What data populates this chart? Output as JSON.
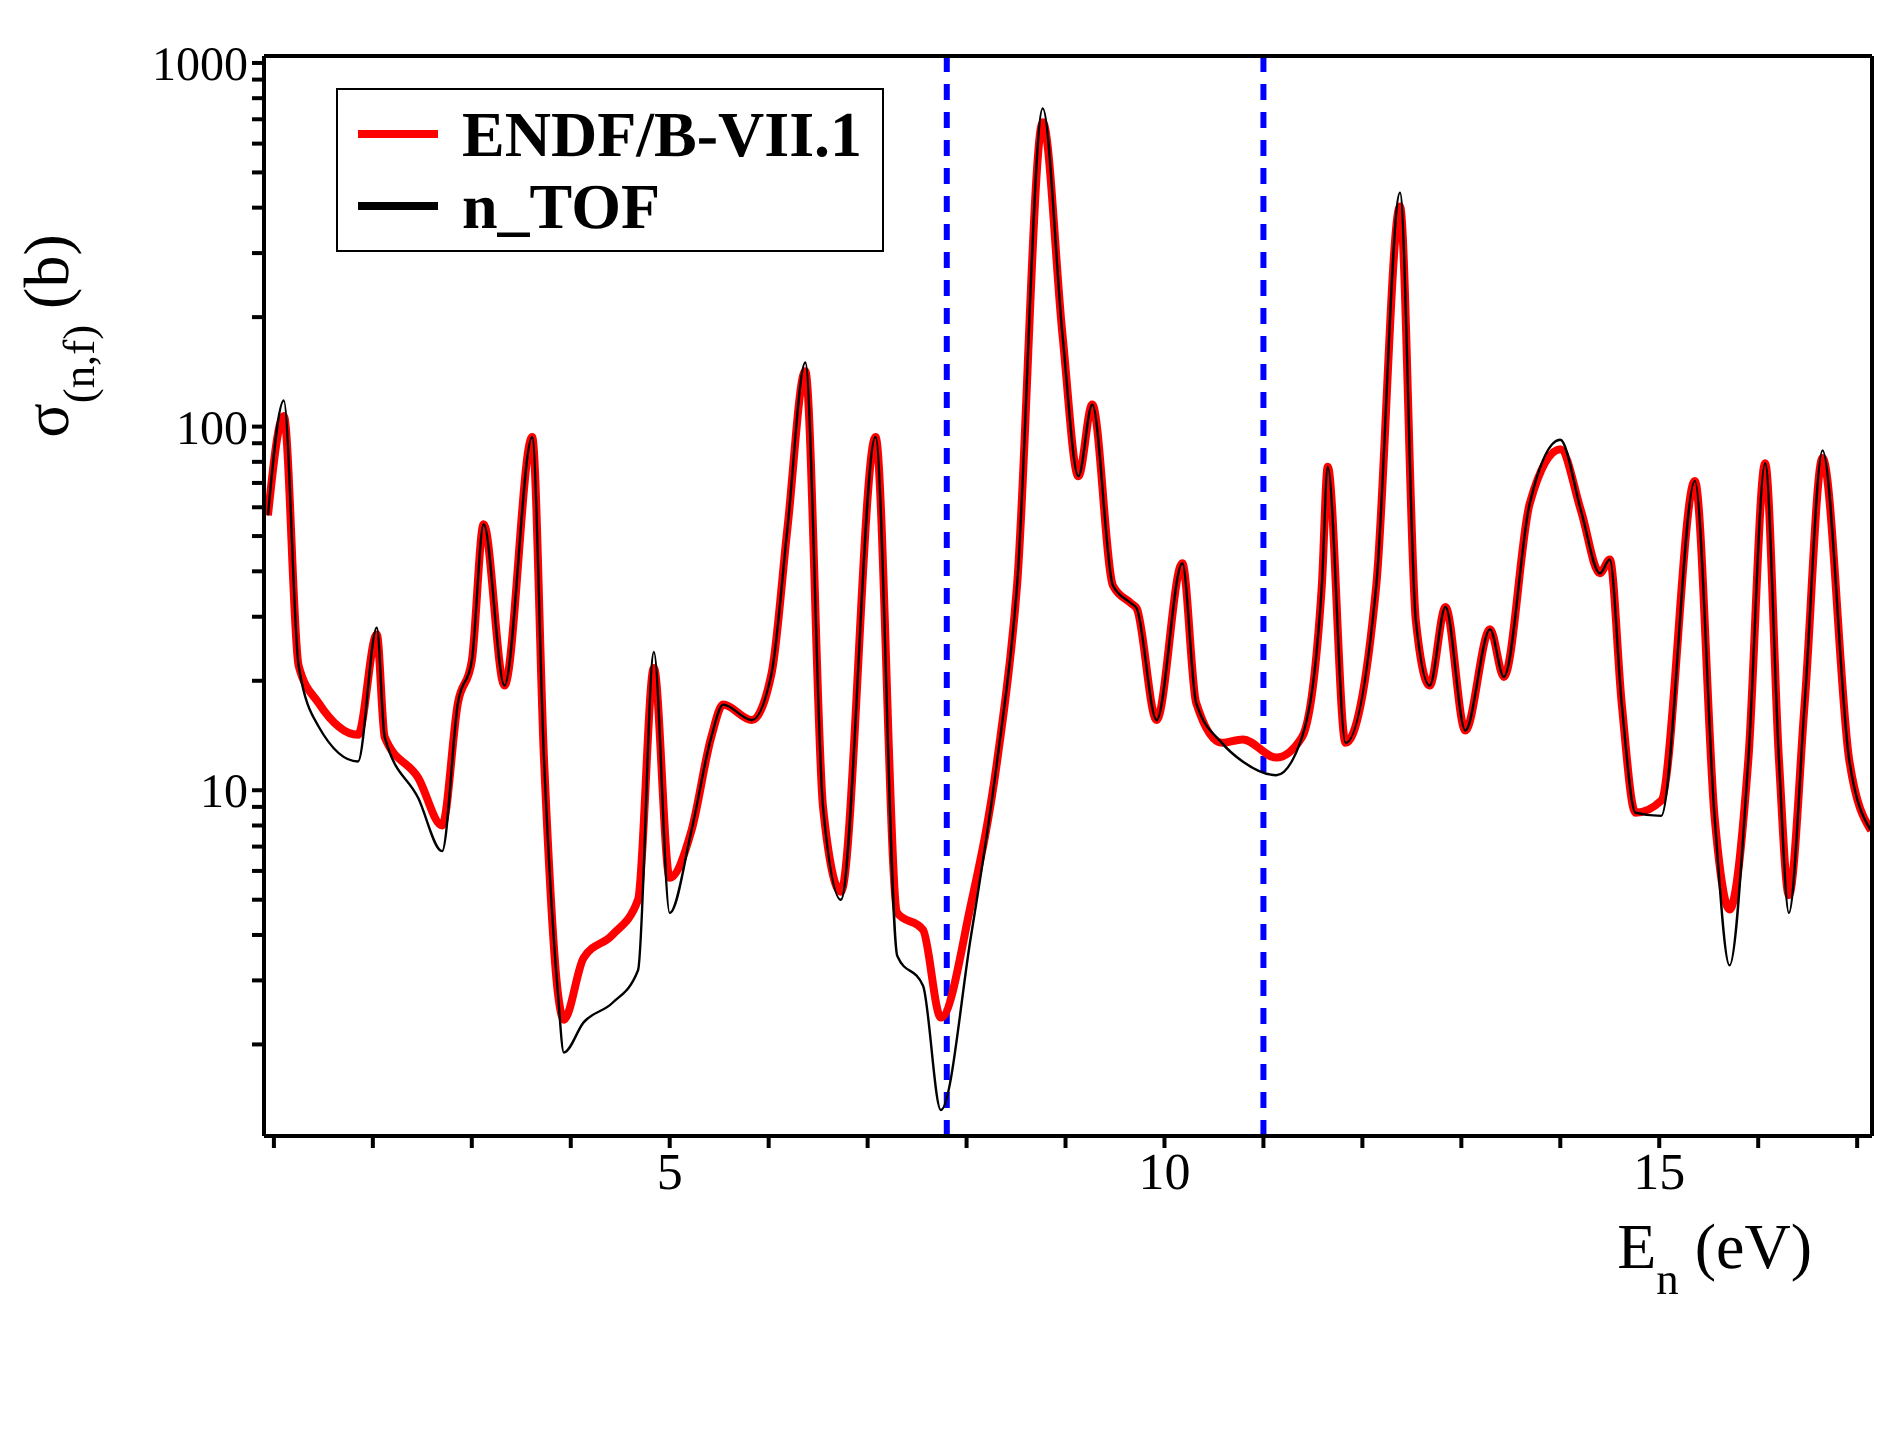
{
  "chart_data": {
    "type": "line",
    "xlabel": "E$_{n}$ (eV)",
    "ylabel": "σ$_{(n,f)}$ (b)",
    "log": "y",
    "legend": "top left",
    "marker": "none",
    "line_style": "solid",
    "xlim": [
      0.9,
      17.15
    ],
    "ylim": [
      1.12,
      1045
    ],
    "xticks": [
      {
        "value": 1,
        "label": null
      },
      {
        "value": 2,
        "label": null
      },
      {
        "value": 3,
        "label": null
      },
      {
        "value": 4,
        "label": null
      },
      5,
      {
        "value": 6,
        "label": null
      },
      {
        "value": 7,
        "label": null
      },
      {
        "value": 8,
        "label": null
      },
      {
        "value": 9,
        "label": null
      },
      10,
      {
        "value": 11,
        "label": null
      },
      {
        "value": 12,
        "label": null
      },
      {
        "value": 13,
        "label": null
      },
      {
        "value": 14,
        "label": null
      },
      15,
      {
        "value": 16,
        "label": null
      },
      {
        "value": 17,
        "label": null
      }
    ],
    "yticks": [
      {
        "value": 2,
        "label": null
      },
      {
        "value": 3,
        "label": null
      },
      {
        "value": 4,
        "label": null
      },
      {
        "value": 5,
        "label": null
      },
      {
        "value": 6,
        "label": null
      },
      {
        "value": 7,
        "label": null
      },
      {
        "value": 8,
        "label": null
      },
      {
        "value": 9,
        "label": null
      },
      10,
      {
        "value": 20,
        "label": null
      },
      {
        "value": 30,
        "label": null
      },
      {
        "value": 40,
        "label": null
      },
      {
        "value": 50,
        "label": null
      },
      {
        "value": 60,
        "label": null
      },
      {
        "value": 70,
        "label": null
      },
      {
        "value": 80,
        "label": null
      },
      {
        "value": 90,
        "label": null
      },
      100,
      {
        "value": 200,
        "label": null
      },
      {
        "value": 300,
        "label": null
      },
      {
        "value": 400,
        "label": null
      },
      {
        "value": 500,
        "label": null
      },
      {
        "value": 600,
        "label": null
      },
      {
        "value": 700,
        "label": null
      },
      {
        "value": 800,
        "label": null
      },
      {
        "value": 900,
        "label": null
      },
      1000
    ],
    "ref_lines": [
      {
        "axis": "x",
        "value": 7.8,
        "color": "#0000ff",
        "line_style": "dashed"
      },
      {
        "axis": "x",
        "value": 11.0,
        "color": "#0000ff",
        "line_style": "dashed"
      }
    ],
    "x": [
      0.94,
      1.1,
      1.25,
      1.45,
      1.85,
      2.04,
      2.12,
      2.46,
      2.7,
      2.86,
      3.0,
      3.12,
      3.33,
      3.61,
      3.73,
      3.87,
      3.93,
      4.13,
      4.42,
      4.68,
      4.84,
      5.0,
      5.22,
      5.42,
      5.54,
      5.83,
      6.03,
      6.19,
      6.37,
      6.55,
      6.73,
      7.08,
      7.3,
      7.56,
      7.74,
      8.04,
      8.31,
      8.51,
      8.77,
      8.97,
      9.13,
      9.27,
      9.48,
      9.66,
      9.72,
      9.92,
      10.18,
      10.32,
      10.58,
      10.79,
      11.13,
      11.39,
      11.59,
      11.65,
      11.83,
      12.14,
      12.38,
      12.54,
      12.68,
      12.84,
      13.04,
      13.29,
      13.43,
      13.69,
      14.0,
      14.21,
      14.4,
      14.5,
      14.62,
      14.76,
      15.02,
      15.36,
      15.56,
      15.71,
      15.9,
      16.07,
      16.21,
      16.31,
      16.47,
      16.65,
      16.92,
      17.14
    ],
    "series": [
      {
        "name": "ENDF/B-VII.1",
        "color": "#ff0000",
        "values": [
          57,
          107,
          22,
          17.4,
          14.2,
          26.8,
          14.0,
          10.8,
          8.0,
          17.4,
          22.7,
          53.9,
          19.4,
          93.6,
          12.1,
          2.77,
          2.34,
          3.46,
          4.0,
          5.0,
          21.7,
          5.75,
          7.75,
          14.0,
          17.2,
          15.6,
          21.0,
          52.6,
          142,
          8.95,
          5.26,
          93.6,
          4.6,
          4.13,
          2.37,
          4.8,
          12.1,
          36.5,
          687,
          178,
          73,
          115,
          36.5,
          32.7,
          31.6,
          15.6,
          42.1,
          17.4,
          13.5,
          13.8,
          12.3,
          14.0,
          36.5,
          77.6,
          13.5,
          36.5,
          403,
          29.3,
          19.4,
          31.9,
          14.6,
          27.7,
          20.5,
          61.3,
          86.7,
          58.6,
          39.5,
          43.1,
          17.4,
          8.67,
          9.36,
          70.9,
          8.4,
          4.7,
          12.1,
          79.3,
          12.1,
          5.15,
          17.4,
          82,
          12.1,
          7.75
        ]
      },
      {
        "name": "n_TOF",
        "color": "#000000",
        "values": [
          57,
          118,
          22,
          15,
          12,
          28,
          14.0,
          9.5,
          6.8,
          17.4,
          22.7,
          53.9,
          19.4,
          93.6,
          12.1,
          2.77,
          1.9,
          2.3,
          2.6,
          3.2,
          24,
          4.6,
          7.75,
          14.0,
          17.2,
          15.6,
          21.0,
          52.6,
          150,
          8.95,
          5.0,
          93.6,
          3.5,
          2.9,
          1.32,
          3.9,
          12.1,
          36.5,
          750,
          178,
          73,
          115,
          36.5,
          32.7,
          31.6,
          15.6,
          42.1,
          17.4,
          13.5,
          12.0,
          11.0,
          14.0,
          36.5,
          77.6,
          13.5,
          36.5,
          440,
          29.3,
          19.4,
          31.9,
          14.6,
          27.7,
          20.5,
          61.3,
          92,
          58.6,
          39.5,
          43.1,
          17.4,
          8.67,
          8.5,
          70.9,
          8.4,
          3.3,
          12.1,
          79.3,
          12.1,
          4.6,
          17.4,
          86,
          12.1,
          7.75
        ]
      }
    ]
  }
}
